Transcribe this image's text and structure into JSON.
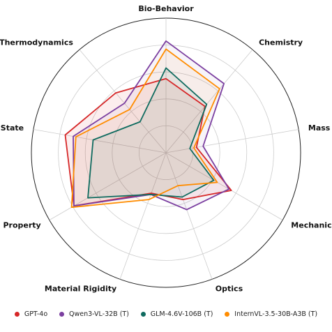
{
  "chart_data": {
    "type": "radar",
    "axes": [
      "Bio-Behavior",
      "Chemistry",
      "Mass & Vol.",
      "Mechanics",
      "Optics",
      "Material Rigidity",
      "Property",
      "State",
      "Thermodynamics"
    ],
    "rlim": [
      0,
      1
    ],
    "grid": true,
    "legend_position": "bottom",
    "series": [
      {
        "name": "GPT-4o",
        "color": "#d62728",
        "values": [
          0.55,
          0.45,
          0.23,
          0.56,
          0.37,
          0.32,
          0.79,
          0.76,
          0.58
        ]
      },
      {
        "name": "Qwen3-VL-32B (T)",
        "color": "#7b3fa0",
        "values": [
          0.83,
          0.67,
          0.28,
          0.54,
          0.45,
          0.33,
          0.79,
          0.7,
          0.48
        ]
      },
      {
        "name": "GLM-4.6V-106B (T)",
        "color": "#0f6b5f",
        "values": [
          0.63,
          0.47,
          0.18,
          0.41,
          0.35,
          0.33,
          0.67,
          0.55,
          0.3
        ]
      },
      {
        "name": "InternVL-3.5-30B-A3B (T)",
        "color": "#ff8c00",
        "values": [
          0.77,
          0.62,
          0.21,
          0.44,
          0.26,
          0.37,
          0.81,
          0.68,
          0.42
        ]
      }
    ]
  }
}
